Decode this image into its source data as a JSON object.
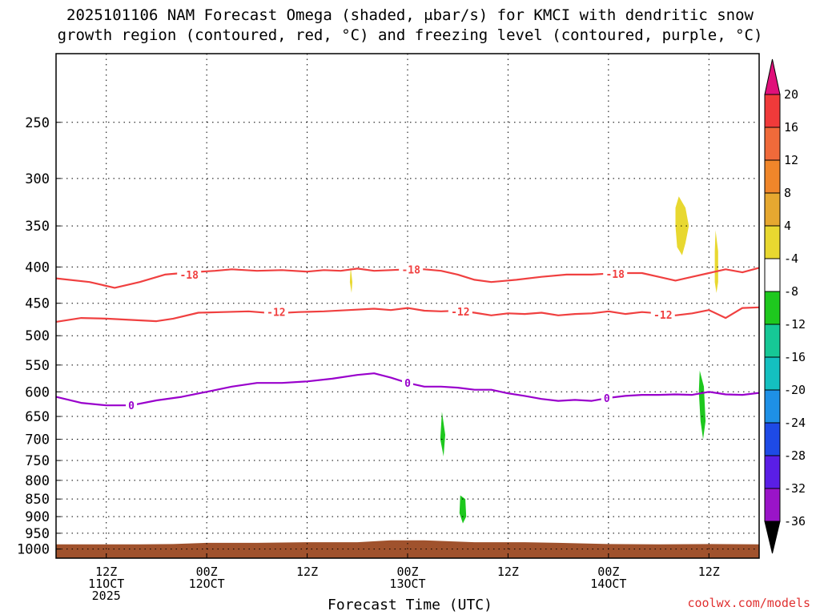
{
  "title_line1": "2025101106 NAM Forecast Omega (shaded, μbar/s) for KMCI with dendritic snow",
  "title_line2": "growth region (contoured, red, °C) and freezing level (contoured, purple, °C)",
  "credit": "coolwx.com/models",
  "colors": {
    "ground": "#a0522d",
    "dgz_contour": "#f04040",
    "freezing_contour": "#9900cc"
  },
  "chart_data": {
    "type": "time-height cross section",
    "xlabel": "Forecast Time (UTC)",
    "x_ticks": [
      {
        "label": [
          "12Z",
          "11OCT",
          "2025"
        ],
        "hour": 6
      },
      {
        "label": [
          "00Z",
          "12OCT"
        ],
        "hour": 18
      },
      {
        "label": [
          "12Z"
        ],
        "hour": 30
      },
      {
        "label": [
          "00Z",
          "13OCT"
        ],
        "hour": 42
      },
      {
        "label": [
          "12Z"
        ],
        "hour": 54
      },
      {
        "label": [
          "00Z",
          "14OCT"
        ],
        "hour": 66
      },
      {
        "label": [
          "12Z"
        ],
        "hour": 78
      }
    ],
    "x_range_hours": [
      0,
      84
    ],
    "y_ticks_hpa": [
      250,
      300,
      350,
      400,
      450,
      500,
      550,
      600,
      650,
      700,
      750,
      800,
      850,
      900,
      950,
      1000
    ],
    "y_scale": "log-pressure",
    "y_range_hpa": [
      1030,
      200
    ],
    "grid": true,
    "colorbar": {
      "labels": [
        "20",
        "16",
        "12",
        "8",
        "4",
        "-4",
        "-8",
        "-12",
        "-16",
        "-20",
        "-24",
        "-28",
        "-32",
        "-36"
      ],
      "colors": [
        "#f03a3a",
        "#f06a3a",
        "#f0862a",
        "#e6a830",
        "#e8d830",
        "#ffffff",
        "#1ec81e",
        "#16c896",
        "#14c0c0",
        "#1e90e6",
        "#1e4ae6",
        "#5a1ee6",
        "#9a14c8",
        "#a0a0a0"
      ],
      "top_arrow_color": "#e0107a",
      "bottom_arrow_color": "#000000"
    },
    "contours": [
      {
        "level": "-18",
        "color": "dgz_contour",
        "points": [
          [
            0,
            415
          ],
          [
            4,
            420
          ],
          [
            7,
            428
          ],
          [
            10,
            420
          ],
          [
            13,
            410
          ],
          [
            16,
            407
          ],
          [
            19,
            405
          ],
          [
            21,
            403
          ],
          [
            24,
            405
          ],
          [
            27,
            404
          ],
          [
            30,
            406
          ],
          [
            32,
            404
          ],
          [
            34,
            405
          ],
          [
            36,
            402
          ],
          [
            38,
            405
          ],
          [
            40,
            404
          ],
          [
            42,
            403
          ],
          [
            44,
            403
          ],
          [
            46,
            405
          ],
          [
            48,
            410
          ],
          [
            50,
            417
          ],
          [
            52,
            420
          ],
          [
            55,
            417
          ],
          [
            58,
            413
          ],
          [
            61,
            410
          ],
          [
            64,
            410
          ],
          [
            67,
            408
          ],
          [
            70,
            408
          ],
          [
            72,
            413
          ],
          [
            74,
            418
          ],
          [
            76,
            413
          ],
          [
            78,
            408
          ],
          [
            80,
            403
          ],
          [
            82,
            407
          ],
          [
            84,
            401
          ]
        ],
        "labels": [
          [
            15.9,
            410
          ],
          [
            42.4,
            403
          ],
          [
            66.8,
            409
          ]
        ]
      },
      {
        "level": "-12",
        "color": "dgz_contour",
        "points": [
          [
            0,
            478
          ],
          [
            3,
            472
          ],
          [
            6,
            473
          ],
          [
            9,
            475
          ],
          [
            12,
            477
          ],
          [
            14,
            473
          ],
          [
            17,
            464
          ],
          [
            20,
            463
          ],
          [
            23,
            462
          ],
          [
            26,
            465
          ],
          [
            29,
            463
          ],
          [
            32,
            462
          ],
          [
            35,
            460
          ],
          [
            38,
            458
          ],
          [
            40,
            460
          ],
          [
            42,
            457
          ],
          [
            44,
            461
          ],
          [
            46,
            462
          ],
          [
            48,
            461
          ],
          [
            50,
            464
          ],
          [
            52,
            468
          ],
          [
            54,
            465
          ],
          [
            56,
            466
          ],
          [
            58,
            464
          ],
          [
            60,
            468
          ],
          [
            62,
            466
          ],
          [
            64,
            465
          ],
          [
            66,
            462
          ],
          [
            68,
            466
          ],
          [
            70,
            463
          ],
          [
            72,
            465
          ],
          [
            74,
            468
          ],
          [
            76,
            465
          ],
          [
            78,
            460
          ],
          [
            80,
            472
          ],
          [
            82,
            457
          ],
          [
            84,
            456
          ]
        ],
        "labels": [
          [
            26.3,
            463
          ],
          [
            48.3,
            462
          ],
          [
            72.5,
            467
          ]
        ]
      },
      {
        "level": "0",
        "color": "freezing_contour",
        "points": [
          [
            0,
            610
          ],
          [
            3,
            622
          ],
          [
            6,
            627
          ],
          [
            9,
            627
          ],
          [
            12,
            617
          ],
          [
            15,
            610
          ],
          [
            18,
            600
          ],
          [
            21,
            590
          ],
          [
            24,
            583
          ],
          [
            27,
            583
          ],
          [
            30,
            580
          ],
          [
            33,
            575
          ],
          [
            36,
            568
          ],
          [
            38,
            565
          ],
          [
            40,
            573
          ],
          [
            42,
            583
          ],
          [
            44,
            590
          ],
          [
            46,
            590
          ],
          [
            48,
            592
          ],
          [
            50,
            596
          ],
          [
            52,
            596
          ],
          [
            54,
            603
          ],
          [
            56,
            608
          ],
          [
            58,
            614
          ],
          [
            60,
            618
          ],
          [
            62,
            616
          ],
          [
            64,
            618
          ],
          [
            66,
            612
          ],
          [
            68,
            608
          ],
          [
            70,
            606
          ],
          [
            72,
            606
          ],
          [
            74,
            605
          ],
          [
            76,
            606
          ],
          [
            78,
            600
          ],
          [
            80,
            605
          ],
          [
            82,
            606
          ],
          [
            84,
            602
          ]
        ],
        "labels": [
          [
            9,
            627
          ],
          [
            42,
            583
          ],
          [
            65.8,
            612
          ]
        ]
      }
    ],
    "omega_regions": [
      {
        "band": "4",
        "points": [
          [
            74.4,
            318
          ],
          [
            75.2,
            330
          ],
          [
            75.6,
            350
          ],
          [
            75.2,
            370
          ],
          [
            74.8,
            385
          ],
          [
            74.2,
            375
          ],
          [
            74.0,
            350
          ],
          [
            74.0,
            330
          ]
        ]
      },
      {
        "band": "4",
        "points": [
          [
            78.8,
            355
          ],
          [
            79.1,
            380
          ],
          [
            79.1,
            420
          ],
          [
            78.9,
            435
          ],
          [
            78.7,
            420
          ],
          [
            78.7,
            380
          ]
        ]
      },
      {
        "band": "4",
        "points": [
          [
            35.2,
            400
          ],
          [
            35.4,
            420
          ],
          [
            35.3,
            435
          ],
          [
            35.1,
            420
          ]
        ]
      },
      {
        "band": "-4",
        "points": [
          [
            41.9,
            420
          ],
          [
            42.3,
            440
          ],
          [
            42.3,
            480
          ],
          [
            42.1,
            520
          ],
          [
            41.8,
            500
          ],
          [
            41.7,
            460
          ],
          [
            41.8,
            435
          ]
        ]
      },
      {
        "band": "-4",
        "points": [
          [
            43.0,
            520
          ],
          [
            43.9,
            570
          ],
          [
            44.5,
            640
          ],
          [
            45.0,
            680
          ],
          [
            45.4,
            600
          ],
          [
            45.7,
            520
          ],
          [
            46.0,
            480
          ],
          [
            46.4,
            570
          ],
          [
            46.8,
            660
          ],
          [
            47.0,
            720
          ],
          [
            47.4,
            780
          ],
          [
            47.9,
            760
          ],
          [
            48.7,
            800
          ],
          [
            49.2,
            800
          ],
          [
            49.6,
            850
          ],
          [
            50.0,
            950
          ],
          [
            49.0,
            960
          ],
          [
            48.3,
            940
          ],
          [
            47.9,
            900
          ],
          [
            47.3,
            860
          ],
          [
            46.3,
            860
          ],
          [
            45.3,
            830
          ],
          [
            44.7,
            800
          ],
          [
            44.0,
            720
          ],
          [
            43.3,
            660
          ]
        ]
      },
      {
        "band": "-4",
        "points": [
          [
            53.3,
            540
          ],
          [
            54.3,
            570
          ],
          [
            55.1,
            620
          ],
          [
            55.2,
            660
          ],
          [
            54.6,
            690
          ],
          [
            53.8,
            660
          ],
          [
            53.3,
            600
          ],
          [
            53.1,
            570
          ]
        ]
      },
      {
        "band": "-4",
        "points": [
          [
            74.3,
            490
          ],
          [
            74.7,
            520
          ],
          [
            74.6,
            570
          ],
          [
            74.3,
            560
          ],
          [
            74.1,
            520
          ]
        ]
      },
      {
        "band": "-4",
        "points": [
          [
            76.8,
            505
          ],
          [
            77.6,
            530
          ],
          [
            78.0,
            600
          ],
          [
            78.3,
            680
          ],
          [
            78.1,
            730
          ],
          [
            77.3,
            730
          ],
          [
            76.7,
            670
          ],
          [
            76.3,
            600
          ],
          [
            76.4,
            540
          ]
        ]
      },
      {
        "band": "-4",
        "points": [
          [
            77.6,
            860
          ],
          [
            78.2,
            870
          ],
          [
            77.9,
            895
          ],
          [
            77.5,
            890
          ]
        ]
      },
      {
        "band": "-8",
        "points": [
          [
            46.1,
            640
          ],
          [
            46.5,
            690
          ],
          [
            46.3,
            740
          ],
          [
            45.9,
            700
          ]
        ]
      },
      {
        "band": "-8",
        "points": [
          [
            48.3,
            840
          ],
          [
            48.9,
            850
          ],
          [
            49.0,
            900
          ],
          [
            48.6,
            920
          ],
          [
            48.2,
            890
          ]
        ]
      },
      {
        "band": "-8",
        "points": [
          [
            76.9,
            560
          ],
          [
            77.4,
            590
          ],
          [
            77.6,
            660
          ],
          [
            77.3,
            700
          ],
          [
            77.0,
            660
          ],
          [
            76.8,
            600
          ]
        ]
      }
    ],
    "ground": [
      [
        0,
        985
      ],
      [
        4,
        985
      ],
      [
        10,
        985
      ],
      [
        14,
        984
      ],
      [
        18,
        980
      ],
      [
        24,
        980
      ],
      [
        30,
        978
      ],
      [
        36,
        978
      ],
      [
        40,
        972
      ],
      [
        44,
        972
      ],
      [
        50,
        978
      ],
      [
        56,
        978
      ],
      [
        60,
        980
      ],
      [
        66,
        984
      ],
      [
        72,
        985
      ],
      [
        78,
        984
      ],
      [
        84,
        985
      ]
    ]
  }
}
